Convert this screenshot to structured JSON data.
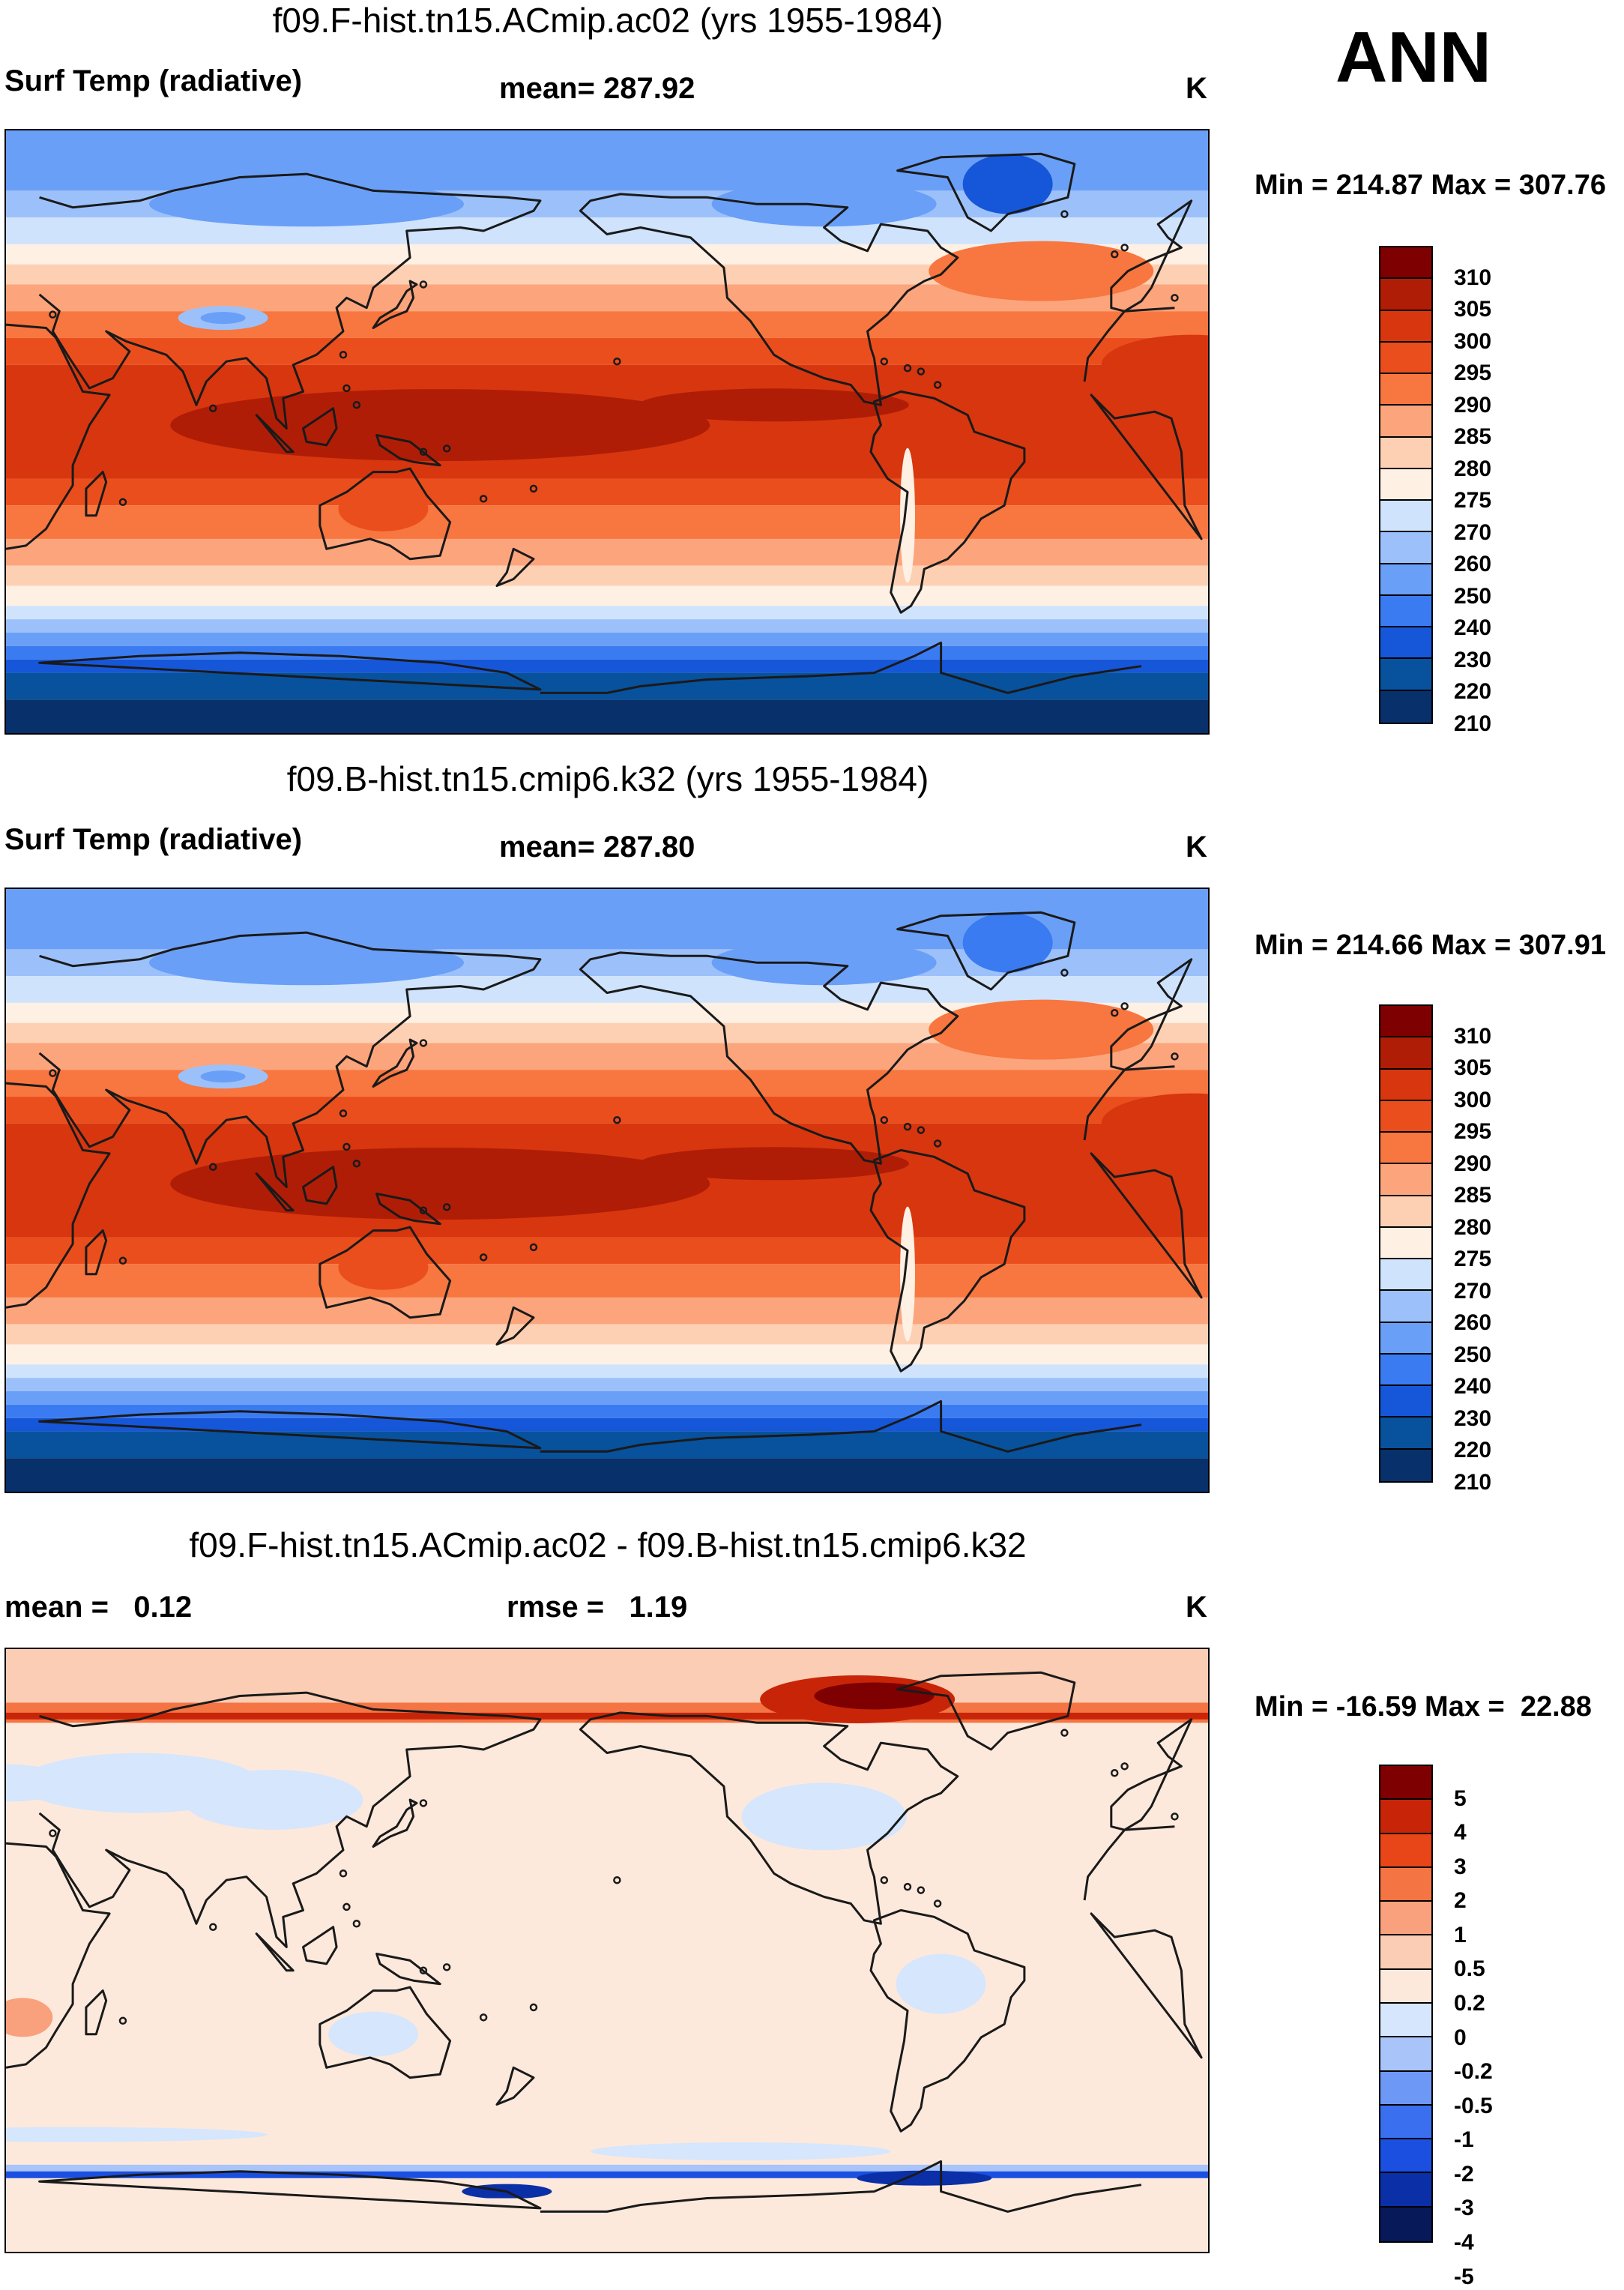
{
  "season": "ANN",
  "palette_temp": [
    "#08306b",
    "#08519c",
    "#1656d8",
    "#3a7bf2",
    "#6a9ff7",
    "#9cc1fa",
    "#cfe3fc",
    "#fff0e4",
    "#fdd0b4",
    "#fca57d",
    "#f8763f",
    "#eb4e1d",
    "#d7360f",
    "#b01d06",
    "#7f0000"
  ],
  "palette_diff": [
    "#08195a",
    "#0a2fa6",
    "#1a4fe0",
    "#3a6ff0",
    "#6e98f5",
    "#a8c4f8",
    "#d6e6fc",
    "#fde9dc",
    "#fbcdb4",
    "#f9a07d",
    "#f47444",
    "#e84518",
    "#c82508",
    "#7f0000"
  ],
  "land_color": "#1a1a1a",
  "chart_data": [
    {
      "type": "heatmap",
      "title": "f09.F-hist.tn15.ACmip.ac02 (yrs 1955-1984)",
      "variable": "Surf Temp (radiative)",
      "mean_label": "mean= 287.92",
      "units": "K",
      "minmax_label": "Min = 214.87 Max = 307.76",
      "min": 214.87,
      "max": 307.76,
      "mean": 287.92,
      "colorbar_levels": [
        "310",
        "305",
        "300",
        "295",
        "290",
        "285",
        "280",
        "275",
        "270",
        "260",
        "250",
        "240",
        "230",
        "220",
        "210"
      ]
    },
    {
      "type": "heatmap",
      "title": "f09.B-hist.tn15.cmip6.k32 (yrs 1955-1984)",
      "variable": "Surf Temp (radiative)",
      "mean_label": "mean= 287.80",
      "units": "K",
      "minmax_label": "Min = 214.66 Max = 307.91",
      "min": 214.66,
      "max": 307.91,
      "mean": 287.8,
      "colorbar_levels": [
        "310",
        "305",
        "300",
        "295",
        "290",
        "285",
        "280",
        "275",
        "270",
        "260",
        "250",
        "240",
        "230",
        "220",
        "210"
      ]
    },
    {
      "type": "heatmap",
      "title": "f09.F-hist.tn15.ACmip.ac02 - f09.B-hist.tn15.cmip6.k32",
      "mean_label": "mean =   0.12",
      "rmse_label": "rmse =   1.19",
      "units": "K",
      "minmax_label": "Min = -16.59 Max =  22.88",
      "min": -16.59,
      "max": 22.88,
      "mean": 0.12,
      "rmse": 1.19,
      "colorbar_levels": [
        "5",
        "4",
        "3",
        "2",
        "1",
        "0.5",
        "0.2",
        "0",
        "-0.2",
        "-0.5",
        "-1",
        "-2",
        "-3",
        "-4",
        "-5"
      ]
    }
  ]
}
